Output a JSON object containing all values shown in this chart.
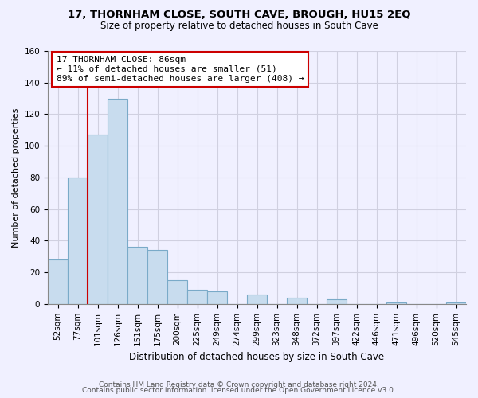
{
  "title": "17, THORNHAM CLOSE, SOUTH CAVE, BROUGH, HU15 2EQ",
  "subtitle": "Size of property relative to detached houses in South Cave",
  "xlabel": "Distribution of detached houses by size in South Cave",
  "ylabel": "Number of detached properties",
  "bar_labels": [
    "52sqm",
    "77sqm",
    "101sqm",
    "126sqm",
    "151sqm",
    "175sqm",
    "200sqm",
    "225sqm",
    "249sqm",
    "274sqm",
    "299sqm",
    "323sqm",
    "348sqm",
    "372sqm",
    "397sqm",
    "422sqm",
    "446sqm",
    "471sqm",
    "496sqm",
    "520sqm",
    "545sqm"
  ],
  "bar_heights": [
    28,
    80,
    107,
    130,
    36,
    34,
    15,
    9,
    8,
    0,
    6,
    0,
    4,
    0,
    3,
    0,
    0,
    1,
    0,
    0,
    1
  ],
  "bar_color": "#c8dcee",
  "bar_edge_color": "#7aaac8",
  "vline_color": "#cc0000",
  "vline_pos": 1.5,
  "annotation_text": "17 THORNHAM CLOSE: 86sqm\n← 11% of detached houses are smaller (51)\n89% of semi-detached houses are larger (408) →",
  "annotation_box_color": "#ffffff",
  "annotation_box_edge": "#cc0000",
  "ylim": [
    0,
    160
  ],
  "yticks": [
    0,
    20,
    40,
    60,
    80,
    100,
    120,
    140,
    160
  ],
  "grid_color": "#d0d0e0",
  "footer1": "Contains HM Land Registry data © Crown copyright and database right 2024.",
  "footer2": "Contains public sector information licensed under the Open Government Licence v3.0.",
  "bg_color": "#f0f0ff",
  "title_fontsize": 9.5,
  "subtitle_fontsize": 8.5,
  "xlabel_fontsize": 8.5,
  "ylabel_fontsize": 8,
  "tick_fontsize": 7.5,
  "annot_fontsize": 8,
  "footer_fontsize": 6.5
}
